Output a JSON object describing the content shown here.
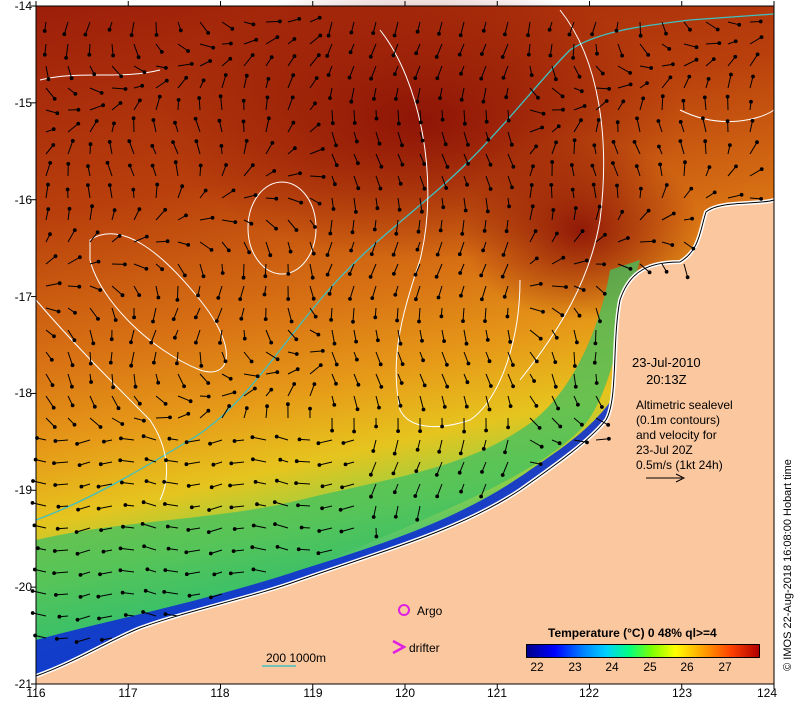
{
  "map": {
    "lat_ticks": [
      "-14",
      "-15",
      "-16",
      "-17",
      "-18",
      "-19",
      "-20",
      "-21"
    ],
    "lon_ticks": [
      "116",
      "117",
      "118",
      "119",
      "120",
      "121",
      "122",
      "123",
      "124"
    ],
    "extent": {
      "lon": [
        116,
        124
      ],
      "lat": [
        -21,
        -14
      ]
    },
    "ocean_color": "#b84a0a",
    "land_color": "#fbc79f"
  },
  "annotations": {
    "date": "23-Jul-2010",
    "time": "20:13Z",
    "altimetry_lines": [
      "Altimetric sealevel",
      "(0.1m contours)",
      "and velocity for",
      "23-Jul 20Z",
      "0.5m/s (1kt 24h)"
    ]
  },
  "legend": {
    "title": "Temperature (°C) 0 48% ql>=4",
    "ticks": [
      "22",
      "23",
      "24",
      "25",
      "26",
      "27"
    ],
    "range": [
      21.5,
      27.7
    ],
    "argo": "Argo",
    "drifter": "drifter",
    "depth": "200  1000m",
    "argo_color": "#e020e0",
    "depth_line_color": "#40c0c0"
  },
  "credit": "© IMOS 22-Aug-2018 16:08:00 Hobart time"
}
